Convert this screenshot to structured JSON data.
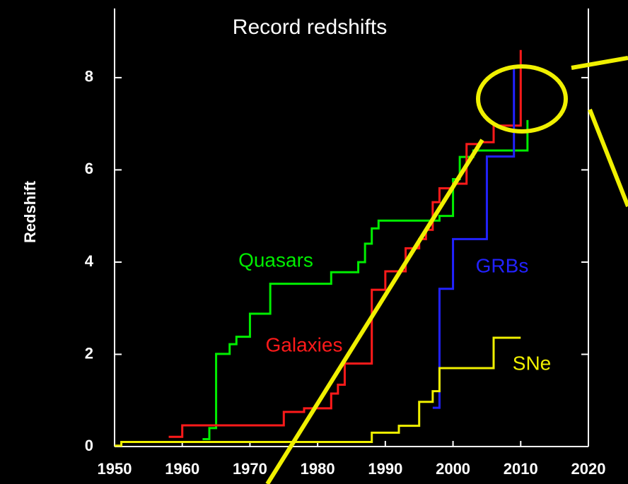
{
  "chart_data": {
    "type": "line",
    "step": "post",
    "title": "Record redshifts",
    "y_label": "Redshift",
    "xlim": [
      1950,
      2020
    ],
    "xticks": [
      1950,
      1960,
      1970,
      1980,
      1990,
      2000,
      2010,
      2020
    ],
    "ylim": [
      0,
      9.5
    ],
    "yticks": [
      0,
      2,
      4,
      6,
      8
    ],
    "series": [
      {
        "name": "Quasars",
        "color": "#00ee00",
        "x": [
          1963,
          1964,
          1965,
          1967,
          1968,
          1970,
          1973,
          1982,
          1986,
          1987,
          1988,
          1989,
          1998,
          1999,
          2000,
          2001,
          2003,
          2011
        ],
        "values": [
          0.16,
          0.4,
          2.01,
          2.22,
          2.38,
          2.88,
          3.53,
          3.78,
          4.0,
          4.4,
          4.73,
          4.9,
          5.0,
          5.0,
          5.8,
          6.28,
          6.42,
          7.08
        ]
      },
      {
        "name": "Galaxies",
        "color": "#ff1a1a",
        "x": [
          1958,
          1960,
          1975,
          1978,
          1982,
          1983,
          1984,
          1988,
          1990,
          1993,
          1995,
          1996,
          1997,
          1998,
          2000,
          2002,
          2004,
          2006,
          2010
        ],
        "values": [
          0.21,
          0.46,
          0.75,
          0.83,
          1.15,
          1.34,
          1.8,
          3.4,
          3.8,
          4.3,
          4.5,
          4.7,
          5.3,
          5.6,
          5.7,
          6.56,
          6.6,
          6.96,
          8.6
        ]
      },
      {
        "name": "GRBs",
        "color": "#2222ff",
        "x": [
          1997,
          1998,
          2000,
          2005,
          2009
        ],
        "values": [
          0.84,
          3.42,
          4.5,
          6.29,
          8.2
        ]
      },
      {
        "name": "SNe",
        "color": "#f0f000",
        "x": [
          1950,
          1951,
          1988,
          1992,
          1995,
          1997,
          1998,
          2006,
          2010
        ],
        "values": [
          0.02,
          0.1,
          0.3,
          0.45,
          0.97,
          1.2,
          1.7,
          2.36,
          2.36
        ]
      }
    ]
  }
}
